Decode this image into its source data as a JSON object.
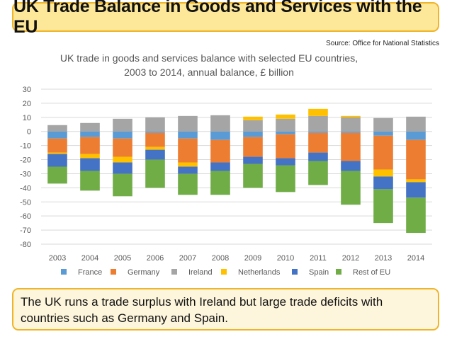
{
  "header": {
    "title": "UK Trade Balance in Goods and Services with the EU"
  },
  "source": "Source: Office for National Statistics",
  "caption": "The UK runs a trade surplus with Ireland but large trade deficits with countries such as Germany and Spain.",
  "chart_data": {
    "type": "bar",
    "stacked": true,
    "title_lines": [
      "UK trade in goods and services balance with selected EU countries,",
      "2003 to 2014, annual balance, £ billion"
    ],
    "categories": [
      "2003",
      "2004",
      "2005",
      "2006",
      "2007",
      "2008",
      "2009",
      "2010",
      "2011",
      "2012",
      "2013",
      "2014"
    ],
    "ylim": [
      -80,
      30
    ],
    "yticks": [
      30,
      20,
      10,
      0,
      -10,
      -20,
      -30,
      -40,
      -50,
      -60,
      -70,
      -80
    ],
    "grid": true,
    "legend_position": "bottom",
    "series": [
      {
        "name": "France",
        "color": "#5b9bd5",
        "values": [
          -5,
          -4,
          -5,
          -1,
          -5,
          -6,
          -4,
          -2,
          -1,
          -1,
          -3,
          -6
        ]
      },
      {
        "name": "Germany",
        "color": "#ed7d31",
        "values": [
          -10,
          -12,
          -13,
          -10,
          -17,
          -16,
          -14,
          -17,
          -14,
          -20,
          -24,
          -28
        ]
      },
      {
        "name": "Ireland",
        "color": "#a5a5a5",
        "values": [
          4.5,
          6,
          9,
          10,
          11,
          11.5,
          8,
          9,
          11,
          10,
          9.5,
          10.5
        ]
      },
      {
        "name": "Netherlands",
        "color": "#ffc000",
        "values": [
          -1,
          -3,
          -4,
          -2,
          -3,
          0,
          2.5,
          3,
          5,
          1,
          -5,
          -2
        ]
      },
      {
        "name": "Spain",
        "color": "#4472c4",
        "values": [
          -9,
          -9,
          -8,
          -7,
          -5,
          -6,
          -5,
          -5,
          -6,
          -7,
          -9,
          -11
        ]
      },
      {
        "name": "Rest of EU",
        "color": "#70ad47",
        "values": [
          -12,
          -14,
          -16,
          -20,
          -15,
          -17,
          -17,
          -19,
          -17,
          -24,
          -24,
          -25
        ]
      }
    ]
  }
}
